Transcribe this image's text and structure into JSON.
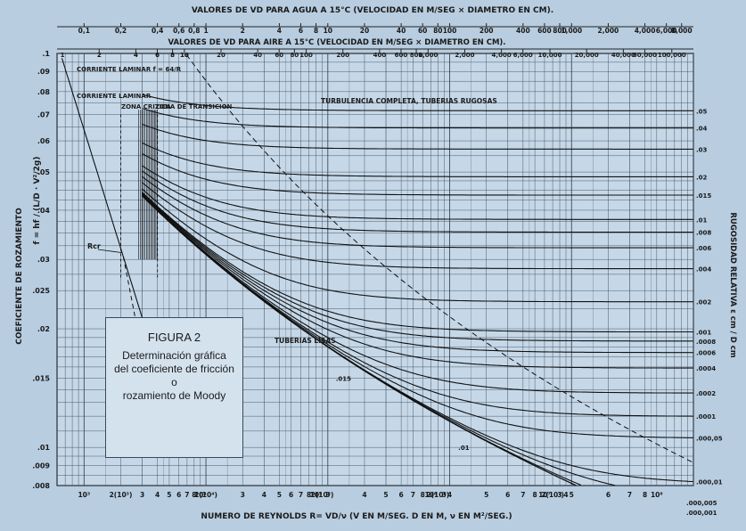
{
  "chart_data": {
    "type": "line",
    "title_top": "VALORES DE VD PARA AGUA A 15°C (VELOCIDAD EN M/SEG × DIAMETRO EN CM).",
    "title_top2": "VALORES DE VD PARA AIRE A 15°C (VELOCIDAD EN M/SEG × DIAMETRO EN CM).",
    "xlabel": "NUMERO   DE REYNOLDS R= VD/ν  (V EN M/SEG. D EN M, ν EN M²/SEG.)",
    "ylabel": "COEFICIENTE DE ROZAMIENTO",
    "ylabel_formula": "f = hf / (L/D · V²/2g)",
    "ylabel_right": "RUGOSIDAD RELATIVA  ε cm / D cm",
    "x_scale": "log",
    "y_scale": "log",
    "xlim": [
      600,
      100000000
    ],
    "ylim": [
      0.008,
      0.1
    ],
    "grid": true,
    "top_ticks_water": [
      "0,1",
      "0,2",
      "0,4",
      "0,6",
      "0,8",
      "1",
      "2",
      "4",
      "6",
      "8",
      "10",
      "20",
      "40",
      "60",
      "80",
      "100",
      "200",
      "400",
      "600",
      "800",
      "1,000",
      "2,000",
      "4,000",
      "6,000",
      "8,000"
    ],
    "top_ticks_air": [
      "2",
      "4",
      "6",
      "8",
      "10",
      "20",
      "40",
      "60",
      "80",
      "100",
      "200",
      "400",
      "600",
      "800",
      "1,000",
      "2,000",
      "4,000",
      "6,000",
      "10,000",
      "20,000",
      "40,000",
      "60,000",
      "100,000"
    ],
    "top_tick_air_prefix": [
      "1",
      "2",
      "4",
      "6",
      "8",
      "10"
    ],
    "y_ticks": [
      ".1",
      ".09",
      ".08",
      ".07",
      ".06",
      ".05",
      ".04",
      ".03",
      ".025",
      ".02",
      ".015",
      ".01",
      ".009",
      ".008"
    ],
    "x_tick_labels": [
      "10³",
      "2(10³)",
      "3",
      "4",
      "5",
      "6",
      "7",
      "8",
      "10⁴",
      "2(10⁴)",
      "3",
      "4",
      "5",
      "6",
      "7",
      "8",
      "10⁵",
      "2(10⁵)",
      "3",
      "4",
      "5",
      "6",
      "7",
      "8",
      "10⁶",
      "2(10⁶)",
      "3",
      "4",
      "5",
      "6",
      "7",
      "8",
      "10⁷",
      "2(10⁷)",
      "3",
      "4",
      "5",
      "6",
      "7",
      "8",
      "10⁸"
    ],
    "right_ticks": [
      ".05",
      ".04",
      ".03",
      ".02",
      ".015",
      ".01",
      ".008",
      ".006",
      ".004",
      ".002",
      ".001",
      ".0008",
      ".0006",
      ".0004",
      ".0002",
      ".0001",
      ".000,05",
      ".000,01"
    ],
    "below_ticks": [
      ".000,005",
      ".000,001"
    ],
    "relative_roughness": [
      0.05,
      0.04,
      0.03,
      0.02,
      0.015,
      0.01,
      0.008,
      0.006,
      0.004,
      0.002,
      0.001,
      0.0008,
      0.0006,
      0.0004,
      0.0002,
      0.0001,
      5e-05,
      1e-05,
      5e-06,
      1e-06
    ],
    "smooth_pipe_label_values": [
      0.015,
      0.01
    ],
    "annotations": {
      "laminar": "CORRIENTE LAMINAR  f = 64/R",
      "laminar2": "CORRIENTE LAMINAR",
      "critical": "ZONA CRITICA",
      "transition": "ZONA DE TRANSICION",
      "full_turbulence": "TURBULENCIA COMPLETA, TUBERIAS RUGOSAS",
      "smooth": "TUBERIAS LISAS",
      "rcr": "Rcr"
    }
  },
  "figure_box": {
    "title": "FIGURA 2",
    "lines": [
      "Determinación gráfica",
      "del coeficiente de fricción o",
      "rozamiento de Moody"
    ]
  }
}
